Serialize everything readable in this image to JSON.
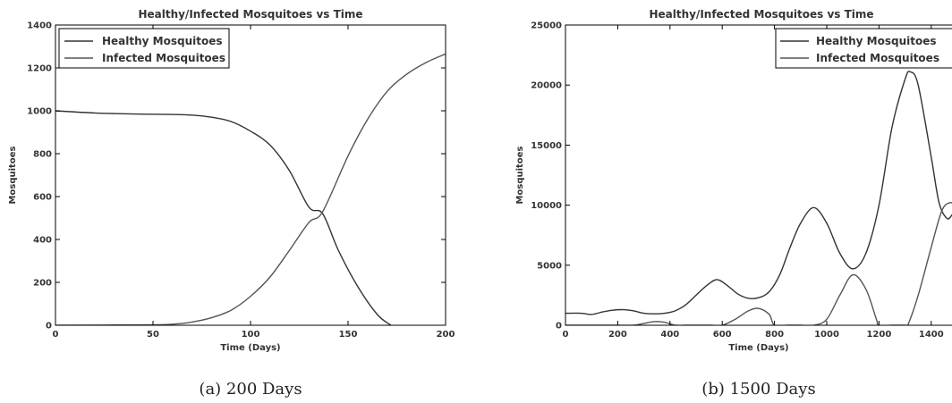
{
  "chart_data": [
    {
      "type": "line",
      "title": "Healthy/Infected Mosquitoes vs Time",
      "xlabel": "Time (Days)",
      "ylabel": "Mosquitoes",
      "xlim": [
        0,
        200
      ],
      "ylim": [
        0,
        1400
      ],
      "xticks": [
        "0",
        "50",
        "100",
        "150",
        "200"
      ],
      "yticks": [
        "0",
        "200",
        "400",
        "600",
        "800",
        "1000",
        "1200",
        "1400"
      ],
      "legend_position": "top-left",
      "caption": "(a) 200 Days",
      "series": [
        {
          "name": "Healthy Mosquitoes",
          "color": "#333333",
          "x": [
            0,
            20,
            40,
            60,
            70,
            80,
            90,
            100,
            110,
            120,
            130,
            137,
            145,
            155,
            165,
            172
          ],
          "y": [
            1000,
            990,
            985,
            983,
            980,
            970,
            950,
            905,
            840,
            720,
            550,
            520,
            350,
            180,
            50,
            0
          ]
        },
        {
          "name": "Infected Mosquitoes",
          "color": "#555555",
          "x": [
            0,
            50,
            60,
            70,
            80,
            90,
            100,
            110,
            120,
            130,
            137,
            150,
            160,
            170,
            180,
            190,
            200
          ],
          "y": [
            0,
            2,
            5,
            15,
            35,
            70,
            135,
            225,
            350,
            480,
            530,
            790,
            960,
            1090,
            1170,
            1225,
            1265
          ]
        }
      ]
    },
    {
      "type": "line",
      "title": "Healthy/Infected Mosquitoes vs Time",
      "xlabel": "Time (Days)",
      "ylabel": "Mosquitoes",
      "xlim": [
        0,
        1500
      ],
      "ylim": [
        0,
        25000
      ],
      "xticks": [
        "0",
        "200",
        "400",
        "600",
        "800",
        "1000",
        "1200",
        "1400"
      ],
      "yticks": [
        "0",
        "5000",
        "10000",
        "15000",
        "20000",
        "25000"
      ],
      "legend_position": "top-right",
      "caption": "(b) 1500 Days",
      "series": [
        {
          "name": "Healthy Mosquitoes",
          "color": "#333333",
          "x": [
            0,
            60,
            100,
            140,
            180,
            220,
            260,
            300,
            340,
            380,
            420,
            460,
            500,
            540,
            580,
            620,
            660,
            700,
            740,
            780,
            820,
            860,
            900,
            950,
            1000,
            1050,
            1100,
            1150,
            1200,
            1250,
            1300,
            1320,
            1350,
            1400,
            1430,
            1460,
            1480,
            1500
          ],
          "y": [
            1000,
            1000,
            900,
            1100,
            1250,
            1300,
            1200,
            1000,
            950,
            1000,
            1200,
            1700,
            2500,
            3300,
            3800,
            3300,
            2600,
            2250,
            2300,
            2800,
            4200,
            6500,
            8500,
            9800,
            8500,
            6000,
            4700,
            6000,
            10000,
            16500,
            20500,
            21100,
            20000,
            14000,
            10200,
            8900,
            9200,
            9800
          ]
        },
        {
          "name": "Infected Mosquitoes",
          "color": "#555555",
          "x": [
            0,
            100,
            130,
            160,
            200,
            260,
            300,
            340,
            380,
            420,
            460,
            500,
            560,
            600,
            650,
            700,
            740,
            780,
            800,
            850,
            900,
            950,
            1000,
            1050,
            1100,
            1150,
            1190,
            1200,
            1250,
            1300,
            1310,
            1350,
            1400,
            1440,
            1470,
            1500
          ],
          "y": [
            0,
            0,
            0,
            0,
            0,
            0,
            150,
            300,
            250,
            0,
            0,
            0,
            0,
            0,
            500,
            1200,
            1400,
            900,
            0,
            0,
            0,
            0,
            500,
            2500,
            4200,
            3000,
            500,
            0,
            0,
            0,
            0,
            2500,
            6500,
            9500,
            10200,
            10000
          ]
        }
      ]
    }
  ]
}
